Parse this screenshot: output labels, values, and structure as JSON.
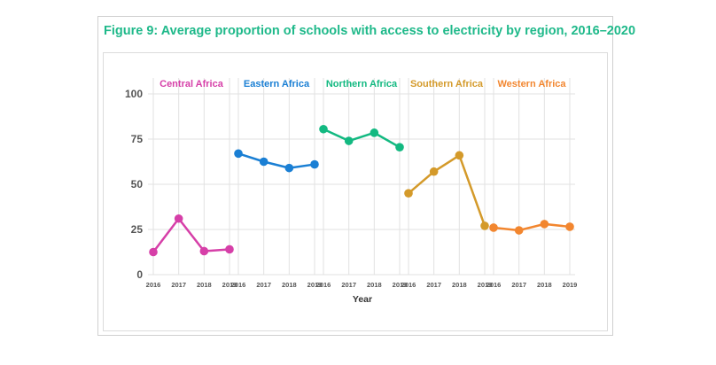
{
  "figure": {
    "title": "Figure 9: Average proportion of schools with access to electricity by region, 2016–2020"
  },
  "colors": {
    "title": "#1fb98a",
    "grid": "#e2e2e2",
    "axis_text": "#555555",
    "xlabel": "#333333"
  },
  "chart_data": {
    "type": "line",
    "title": "Figure 9: Average proportion of schools with access to electricity by region, 2016–2020",
    "xlabel": "Year",
    "ylabel": "",
    "ylim": [
      0,
      100
    ],
    "yticks": [
      "0",
      "25",
      "50",
      "75",
      "100"
    ],
    "categories": [
      "2016",
      "2017",
      "2018",
      "2019"
    ],
    "grid": true,
    "series": [
      {
        "name": "Central Africa",
        "color": "#d63fa8",
        "values": [
          12.5,
          31,
          13,
          14
        ]
      },
      {
        "name": "Eastern Africa",
        "color": "#1a7fd4",
        "values": [
          67,
          62.5,
          59,
          61
        ]
      },
      {
        "name": "Northern Africa",
        "color": "#13b981",
        "values": [
          80.5,
          74,
          78.5,
          70.5
        ]
      },
      {
        "name": "Southern Africa",
        "color": "#d49a2a",
        "values": [
          45,
          57,
          66,
          27
        ]
      },
      {
        "name": "Western Africa",
        "color": "#f2862f",
        "values": [
          26,
          24.5,
          28,
          26.5
        ]
      }
    ]
  }
}
